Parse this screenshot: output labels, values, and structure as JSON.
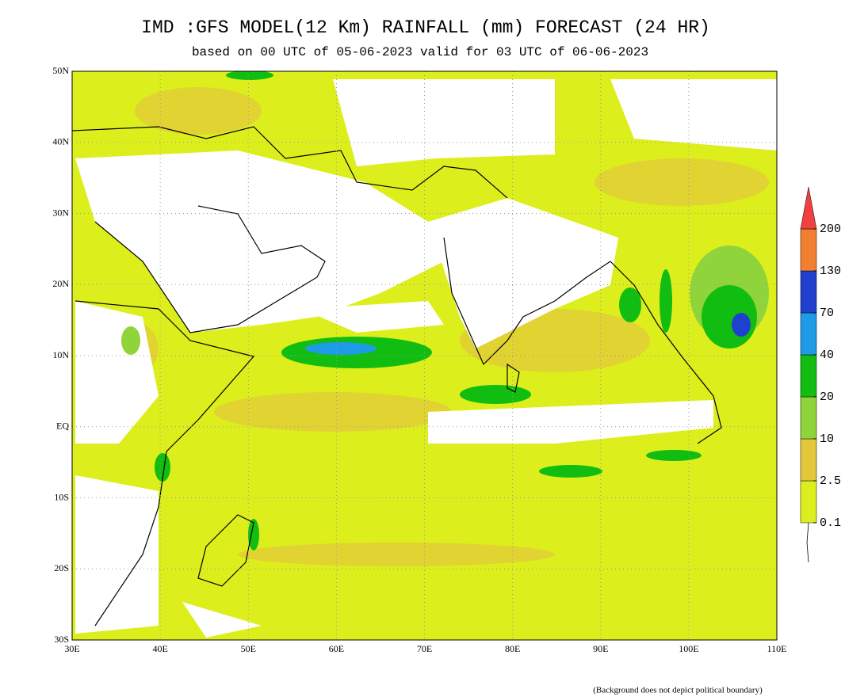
{
  "header": {
    "title": "IMD :GFS MODEL(12 Km) RAINFALL (mm) FORECAST (24 HR)",
    "subtitle": "based on 00 UTC of 05-06-2023 valid for 03 UTC of 06-06-2023"
  },
  "map": {
    "lat_labels": [
      "50N",
      "40N",
      "30N",
      "20N",
      "10N",
      "EQ",
      "10S",
      "20S",
      "30S"
    ],
    "lon_labels": [
      "30E",
      "40E",
      "50E",
      "60E",
      "70E",
      "80E",
      "90E",
      "100E",
      "110E"
    ]
  },
  "legend": {
    "levels": [
      0.1,
      2.5,
      10,
      20,
      40,
      70,
      130,
      200
    ],
    "colors": [
      "#dcef1c",
      "#e2c83a",
      "#8fd43a",
      "#10bd10",
      "#1e9be6",
      "#2040d0",
      "#f08030",
      "#f04040"
    ]
  },
  "footer": {
    "note": "(Background does not depict political boundary)"
  }
}
